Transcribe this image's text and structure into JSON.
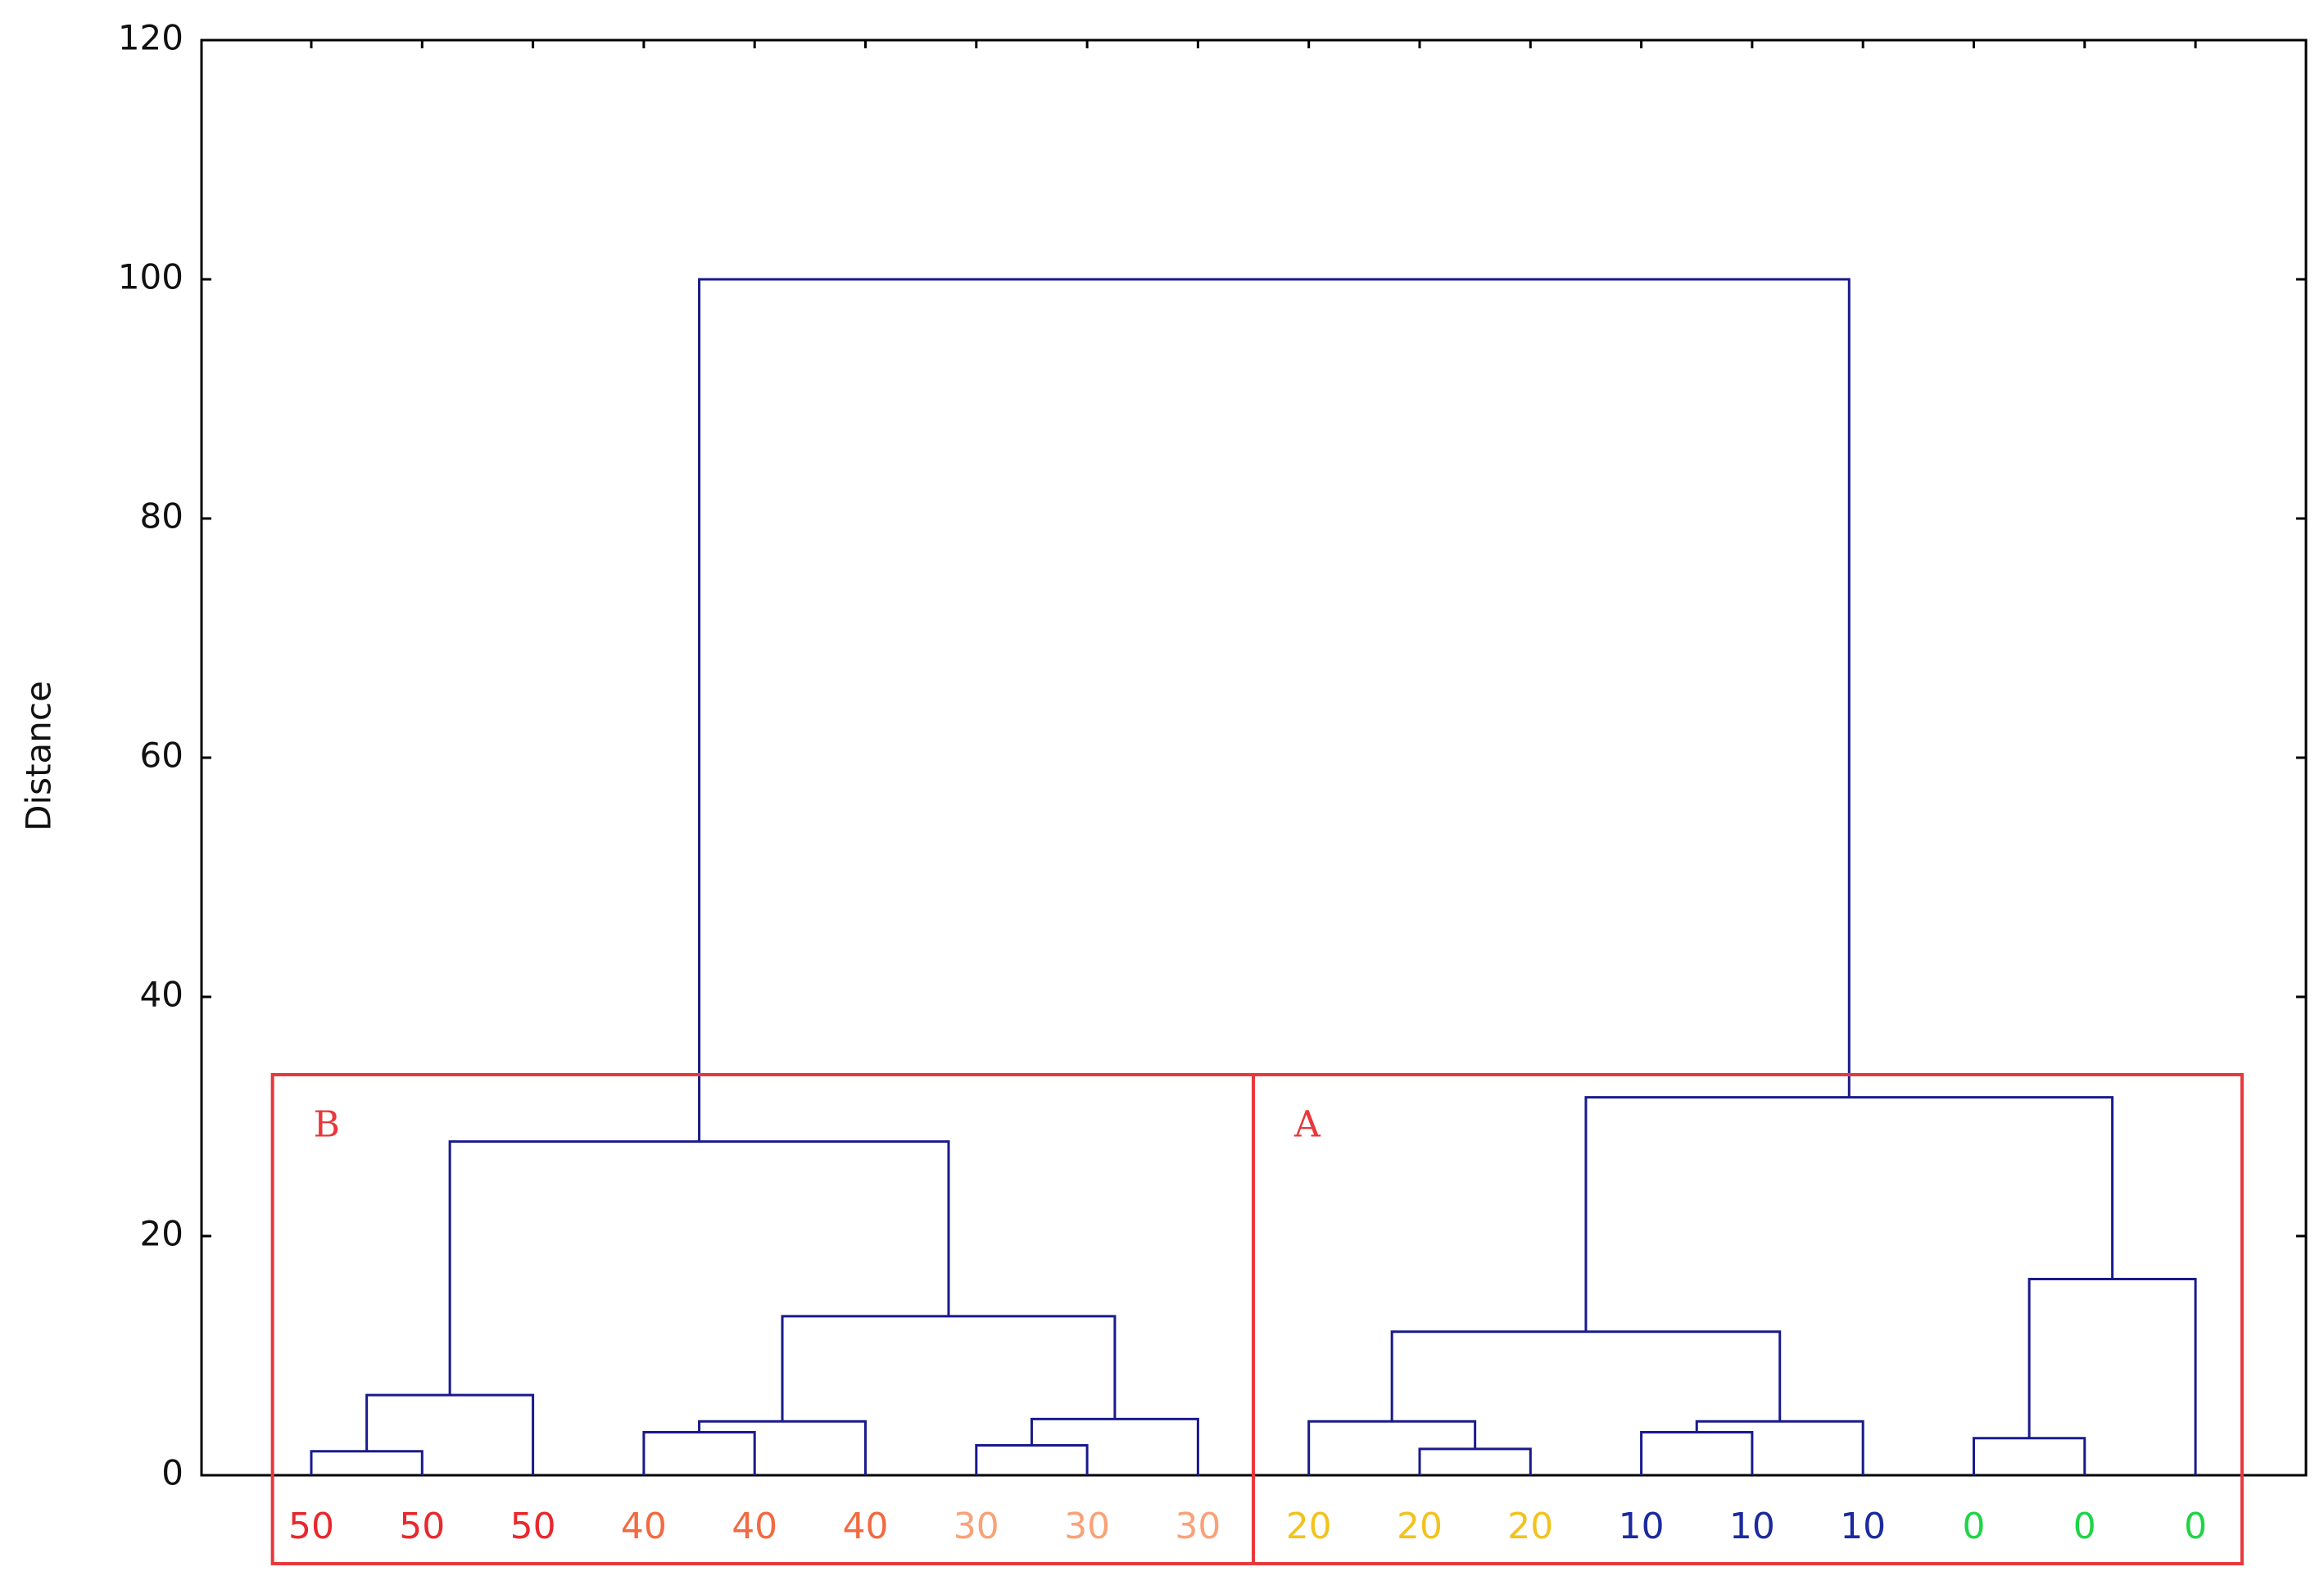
{
  "chart_data": {
    "type": "dendrogram",
    "y_label": "Distance",
    "ylim": [
      0,
      120
    ],
    "yticks": [
      0,
      20,
      40,
      60,
      80,
      100,
      120
    ],
    "link_color": "#1a1a8c",
    "categories": [
      "50",
      "50",
      "50",
      "40",
      "40",
      "40",
      "30",
      "30",
      "30",
      "20",
      "20",
      "20",
      "10",
      "10",
      "10",
      "0",
      "0",
      "0"
    ],
    "label_colors": [
      "#e8282c",
      "#e8282c",
      "#e8282c",
      "#f26a42",
      "#f26a42",
      "#f26a42",
      "#f8a278",
      "#f8a278",
      "#f8a278",
      "#f2c21e",
      "#f2c21e",
      "#f2c21e",
      "#1c2a9e",
      "#1c2a9e",
      "#1c2a9e",
      "#1ed446",
      "#1ed446",
      "#1ed446"
    ],
    "merges": [
      {
        "children": [
          0,
          1
        ],
        "height": 2.0
      },
      {
        "children": [
          18,
          2
        ],
        "height": 6.7
      },
      {
        "children": [
          3,
          4
        ],
        "height": 3.6
      },
      {
        "children": [
          20,
          5
        ],
        "height": 4.5
      },
      {
        "children": [
          6,
          7
        ],
        "height": 2.5
      },
      {
        "children": [
          22,
          8
        ],
        "height": 4.7
      },
      {
        "children": [
          21,
          23
        ],
        "height": 13.3
      },
      {
        "children": [
          19,
          24
        ],
        "height": 27.9
      },
      {
        "children": [
          10,
          11
        ],
        "height": 2.2
      },
      {
        "children": [
          9,
          26
        ],
        "height": 4.5
      },
      {
        "children": [
          12,
          13
        ],
        "height": 3.6
      },
      {
        "children": [
          28,
          14
        ],
        "height": 4.5
      },
      {
        "children": [
          27,
          29
        ],
        "height": 12.0
      },
      {
        "children": [
          15,
          16
        ],
        "height": 3.1
      },
      {
        "children": [
          31,
          17
        ],
        "height": 16.4
      },
      {
        "children": [
          30,
          32
        ],
        "height": 31.6
      },
      {
        "children": [
          25,
          33
        ],
        "height": 100
      }
    ],
    "clusters": [
      {
        "label": "B",
        "leaves": [
          0,
          8
        ]
      },
      {
        "label": "A",
        "leaves": [
          9,
          17
        ]
      }
    ],
    "cluster_color": "#e8383c"
  }
}
